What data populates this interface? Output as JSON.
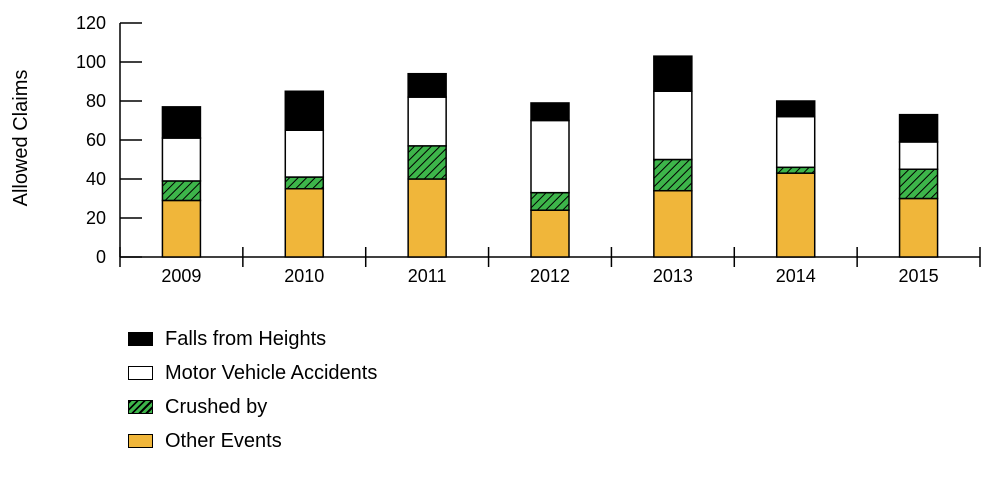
{
  "chart_data": {
    "type": "bar",
    "stacked": true,
    "categories": [
      "2009",
      "2010",
      "2011",
      "2012",
      "2013",
      "2014",
      "2015"
    ],
    "series": [
      {
        "name": "Other Events",
        "color": "#F0B63A",
        "pattern": "solid",
        "values": [
          29,
          35,
          40,
          24,
          34,
          43,
          30
        ]
      },
      {
        "name": "Crushed by",
        "color": "#3DB54A",
        "pattern": "hatched",
        "values": [
          10,
          6,
          17,
          9,
          16,
          3,
          15
        ]
      },
      {
        "name": "Motor Vehicle Accidents",
        "color": "#FFFFFF",
        "pattern": "solid",
        "values": [
          22,
          24,
          25,
          37,
          35,
          26,
          14
        ]
      },
      {
        "name": "Falls from Heights",
        "color": "#000000",
        "pattern": "solid",
        "values": [
          16,
          20,
          12,
          9,
          18,
          8,
          14
        ]
      }
    ],
    "ylabel": "Allowed Claims",
    "xlabel": "",
    "title": "",
    "ylim": [
      0,
      120
    ],
    "yticks": [
      0,
      20,
      40,
      60,
      80,
      100,
      120
    ],
    "grid": false,
    "legend_position": "bottom-left",
    "legend_order": [
      "Falls from Heights",
      "Motor Vehicle Accidents",
      "Crushed by",
      "Other Events"
    ]
  }
}
